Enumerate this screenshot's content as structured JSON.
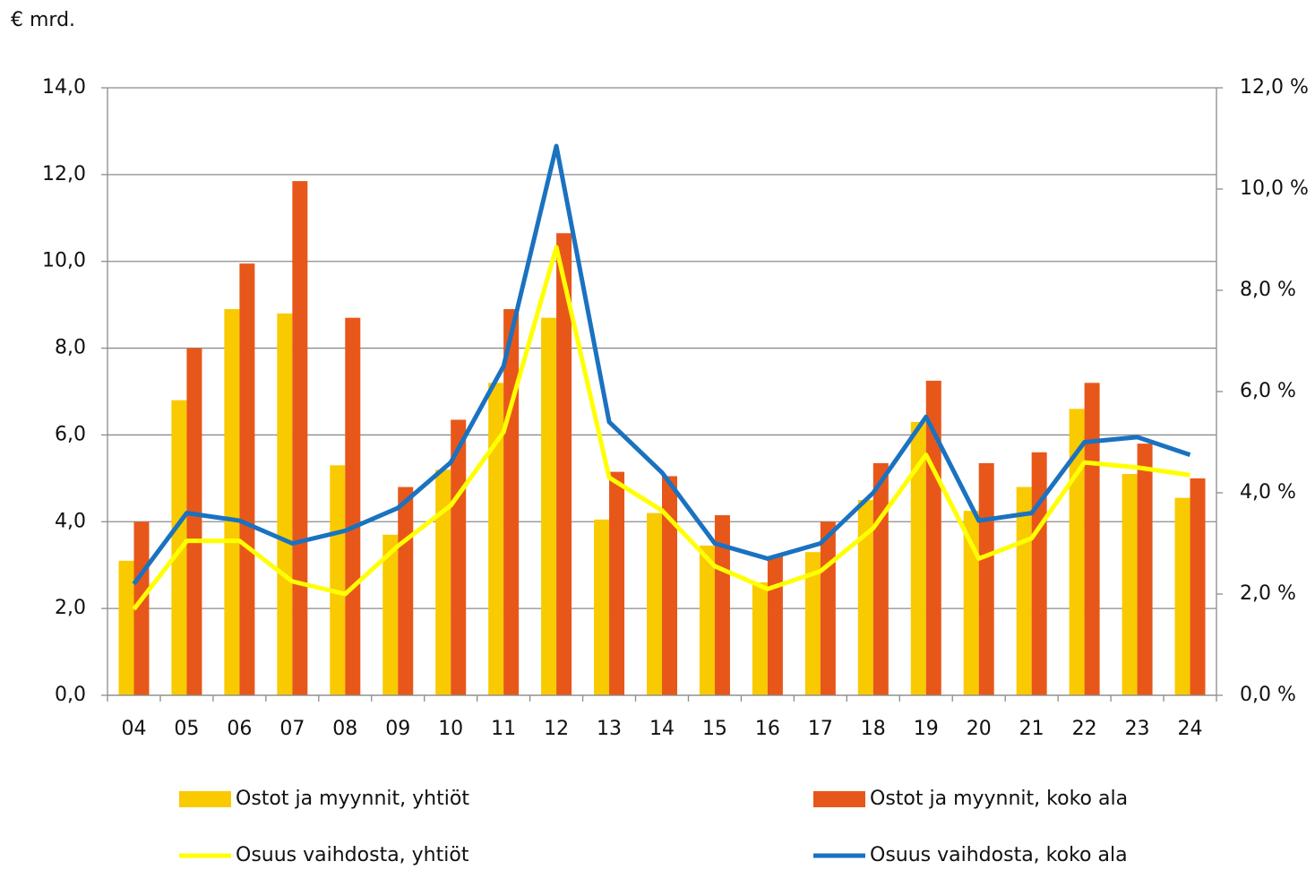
{
  "chart_data": {
    "type": "combo",
    "y_axis_label": "€ mrd.",
    "categories": [
      "04",
      "05",
      "06",
      "07",
      "08",
      "09",
      "10",
      "11",
      "12",
      "13",
      "14",
      "15",
      "16",
      "17",
      "18",
      "19",
      "20",
      "21",
      "22",
      "23",
      "24"
    ],
    "series": [
      {
        "name": "Ostot ja myynnit, yhtiöt",
        "type": "bar",
        "color": "#f9ca00",
        "values": [
          3.1,
          6.8,
          8.9,
          8.8,
          5.3,
          3.7,
          5.2,
          7.2,
          8.7,
          4.05,
          4.2,
          3.45,
          2.6,
          3.3,
          4.5,
          6.3,
          4.25,
          4.8,
          6.6,
          5.1,
          4.55
        ]
      },
      {
        "name": "Ostot ja myynnit, koko ala",
        "type": "bar",
        "color": "#e8571a",
        "values": [
          4.0,
          8.0,
          9.95,
          11.85,
          8.7,
          4.8,
          6.35,
          8.9,
          10.65,
          5.15,
          5.05,
          4.15,
          3.2,
          4.0,
          5.35,
          7.25,
          5.35,
          5.6,
          7.2,
          5.8,
          5.0
        ]
      },
      {
        "name": "Osuus vaihdosta, yhtiöt",
        "type": "line",
        "axis": "y2",
        "color": "#ffff00",
        "values": [
          1.7,
          3.05,
          3.05,
          2.25,
          2.0,
          2.95,
          3.75,
          5.2,
          8.85,
          4.3,
          3.65,
          2.55,
          2.1,
          2.45,
          3.3,
          4.75,
          2.7,
          3.1,
          4.6,
          4.5,
          4.35
        ]
      },
      {
        "name": "Osuus vaihdosta, koko ala",
        "type": "line",
        "axis": "y2",
        "color": "#1a72c0",
        "values": [
          2.2,
          3.6,
          3.45,
          3.0,
          3.25,
          3.7,
          4.6,
          6.5,
          10.85,
          5.4,
          4.4,
          3.0,
          2.7,
          3.0,
          4.0,
          5.5,
          3.45,
          3.6,
          5.0,
          5.1,
          4.75
        ]
      }
    ],
    "ylim": [
      0,
      14
    ],
    "yticks": [
      {
        "value": 0,
        "label": "0,0"
      },
      {
        "value": 2,
        "label": "2,0"
      },
      {
        "value": 4,
        "label": "4,0"
      },
      {
        "value": 6,
        "label": "6,0"
      },
      {
        "value": 8,
        "label": "8,0"
      },
      {
        "value": 10,
        "label": "10,0"
      },
      {
        "value": 12,
        "label": "12,0"
      },
      {
        "value": 14,
        "label": "14,0"
      }
    ],
    "y2lim": [
      0,
      12
    ],
    "y2ticks": [
      {
        "value": 0,
        "label": "0,0 %"
      },
      {
        "value": 2,
        "label": "2,0 %"
      },
      {
        "value": 4,
        "label": "4,0 %"
      },
      {
        "value": 6,
        "label": "6,0 %"
      },
      {
        "value": 8,
        "label": "8,0 %"
      },
      {
        "value": 10,
        "label": "10,0 %"
      },
      {
        "value": 12,
        "label": "12,0 %"
      }
    ],
    "grid": true
  }
}
